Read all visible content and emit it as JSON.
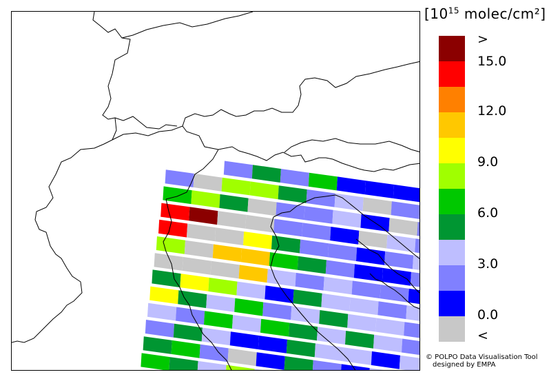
{
  "legend": {
    "unit_prefix": "[10",
    "unit_exp": "15",
    "unit_suffix": " molec/cm²]",
    "labels": [
      ">",
      "15.0",
      "12.0",
      "9.0",
      "6.0",
      "3.0",
      "0.0",
      "<"
    ],
    "colors": [
      "#8b0000",
      "#ff0000",
      "#ff8000",
      "#ffc800",
      "#ffff00",
      "#a0ff00",
      "#00c800",
      "#009632",
      "#bebeff",
      "#8080ff",
      "#0000ff",
      "#c8c8c8"
    ]
  },
  "credit": {
    "line1": "© POLPO Data Visualisation Tool",
    "line2": "designed by EMPA"
  },
  "swaths": [
    [
      9,
      7,
      9,
      6,
      10,
      10,
      10,
      9
    ],
    [
      9,
      11,
      5,
      5,
      7,
      9,
      8,
      11,
      9,
      9
    ],
    [
      6,
      5,
      7,
      11,
      9,
      9,
      8,
      10,
      11,
      9
    ],
    [
      1,
      0,
      11,
      11,
      9,
      9,
      10,
      11,
      8,
      9
    ],
    [
      1,
      11,
      11,
      4,
      7,
      9,
      9,
      10,
      9,
      8
    ],
    [
      5,
      11,
      3,
      3,
      6,
      7,
      9,
      10,
      10,
      9
    ],
    [
      11,
      11,
      11,
      3,
      8,
      9,
      8,
      9,
      9,
      10
    ],
    [
      7,
      4,
      5,
      8,
      10,
      7,
      8,
      8,
      9,
      8
    ],
    [
      4,
      7,
      8,
      6,
      9,
      8,
      7,
      8,
      8,
      9
    ],
    [
      8,
      9,
      6,
      8,
      6,
      7,
      8,
      7,
      8,
      9
    ],
    [
      9,
      7,
      8,
      10,
      10,
      7,
      8,
      8,
      10,
      8
    ],
    [
      7,
      6,
      9,
      11,
      10,
      7,
      9,
      10,
      8,
      9
    ],
    [
      6,
      7,
      8,
      5,
      8,
      9,
      8,
      9,
      8,
      8
    ]
  ]
}
